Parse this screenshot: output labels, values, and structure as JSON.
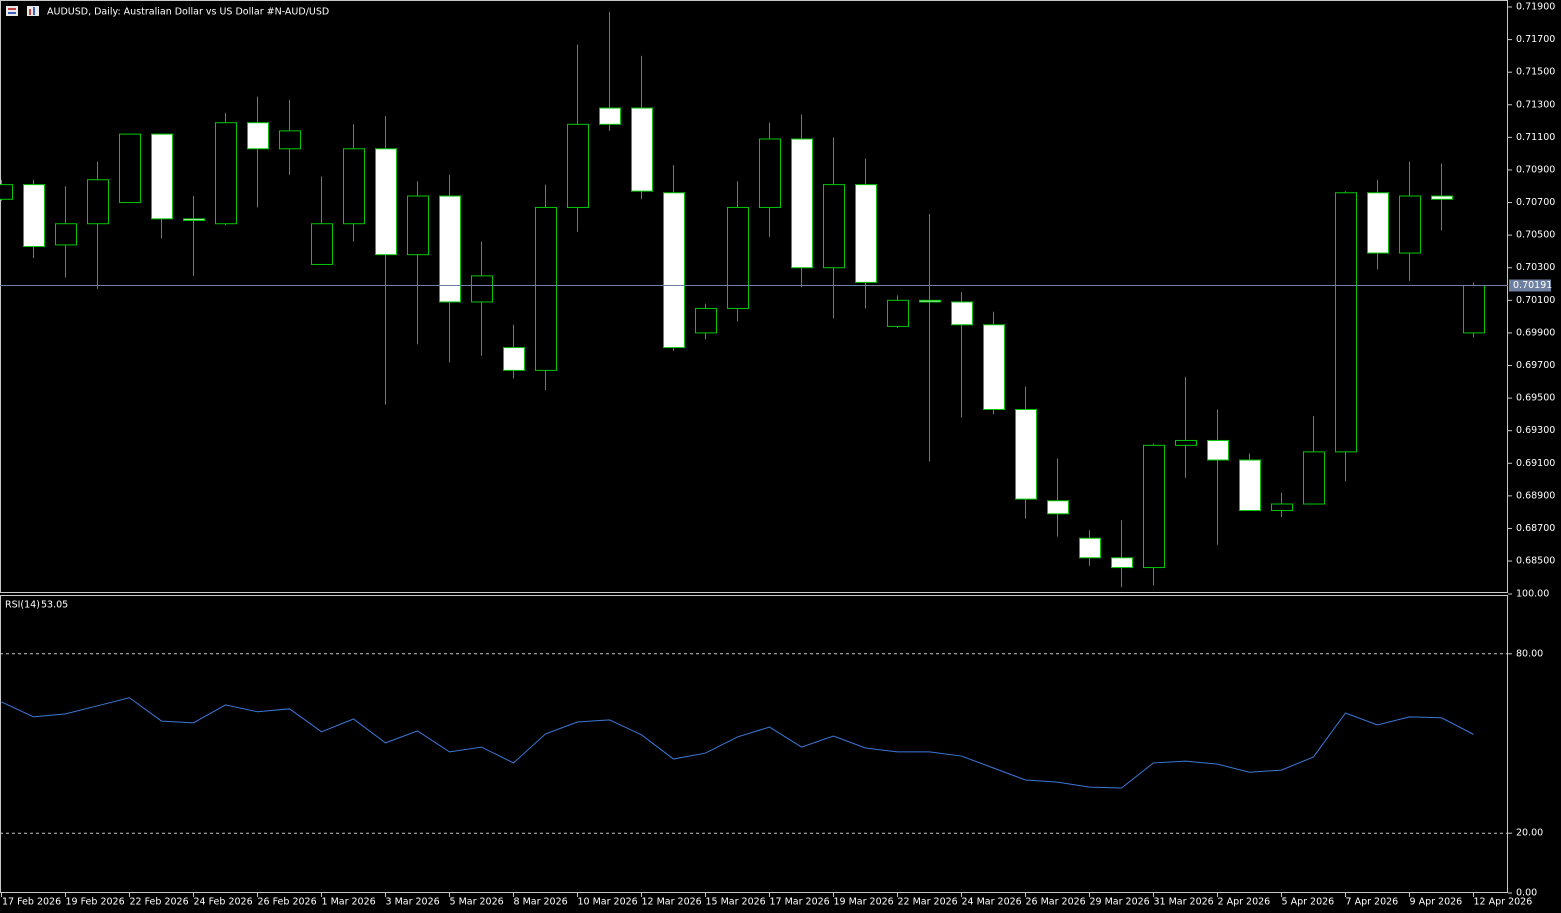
{
  "chart_data": [
    {
      "type": "candlestick",
      "title": "AUDUSD, Daily:  Australian Dollar vs US Dollar #N-AUD/USD",
      "categories": [
        "17 Feb 2026",
        null,
        "19 Feb 2026",
        null,
        "22 Feb 2026",
        null,
        "24 Feb 2026",
        null,
        "26 Feb 2026",
        null,
        "1 Mar 2026",
        null,
        "3 Mar 2026",
        null,
        "5 Mar 2026",
        null,
        "8 Mar 2026",
        null,
        "10 Mar 2026",
        null,
        "12 Mar 2026",
        null,
        "15 Mar 2026",
        null,
        "17 Mar 2026",
        null,
        "19 Mar 2026",
        null,
        "22 Mar 2026",
        null,
        "24 Mar 2026",
        null,
        "26 Mar 2026",
        null,
        "29 Mar 2026",
        null,
        "31 Mar 2026",
        null,
        "2 Apr 2026",
        null,
        "5 Apr 2026",
        null,
        "7 Apr 2026",
        null,
        "9 Apr 2026",
        null,
        "12 Apr 2026"
      ],
      "open": [
        0.7072,
        0.7081,
        0.7044,
        0.7057,
        0.707,
        0.7112,
        0.706,
        0.7057,
        0.7119,
        0.7103,
        0.7032,
        0.7057,
        0.7103,
        0.7038,
        0.7074,
        0.7009,
        0.6981,
        0.6967,
        0.7067,
        0.7128,
        0.7128,
        0.7076,
        0.699,
        0.7005,
        0.7067,
        0.7109,
        0.703,
        0.7081,
        0.6994,
        0.701,
        0.7009,
        0.6995,
        0.6943,
        0.6887,
        0.6864,
        0.6852,
        0.6846,
        0.6921,
        0.6924,
        0.6912,
        0.6881,
        0.6885,
        0.6917,
        0.7076,
        0.7039,
        0.7074,
        0.699
      ],
      "high": [
        0.7084,
        0.7084,
        0.708,
        0.7095,
        0.7112,
        0.7112,
        0.7074,
        0.7125,
        0.7135,
        0.7133,
        0.7086,
        0.7118,
        0.7123,
        0.7083,
        0.7087,
        0.7046,
        0.6995,
        0.7081,
        0.7167,
        0.7187,
        0.716,
        0.7093,
        0.7008,
        0.7083,
        0.7119,
        0.7124,
        0.711,
        0.7097,
        0.7013,
        0.7063,
        0.7015,
        0.7003,
        0.6957,
        0.6913,
        0.6869,
        0.6875,
        0.6922,
        0.6963,
        0.6943,
        0.6916,
        0.6892,
        0.6939,
        0.7077,
        0.7084,
        0.7095,
        0.7094,
        0.7021
      ],
      "low": [
        0.7071,
        0.7036,
        0.7024,
        0.7017,
        0.707,
        0.7048,
        0.7025,
        0.7056,
        0.7067,
        0.7087,
        0.7032,
        0.7046,
        0.6946,
        0.6983,
        0.6972,
        0.6976,
        0.6962,
        0.6955,
        0.7052,
        0.7114,
        0.7072,
        0.6979,
        0.6986,
        0.6997,
        0.7049,
        0.7018,
        0.6999,
        0.7005,
        0.6993,
        0.6911,
        0.6938,
        0.694,
        0.6876,
        0.6865,
        0.6847,
        0.6834,
        0.6835,
        0.6901,
        0.686,
        0.6881,
        0.6877,
        0.6885,
        0.6899,
        0.7029,
        0.7022,
        0.7053,
        0.6987
      ],
      "close": [
        0.7081,
        0.7043,
        0.7057,
        0.7084,
        0.7112,
        0.706,
        0.7059,
        0.7119,
        0.7103,
        0.7114,
        0.7057,
        0.7103,
        0.7038,
        0.7074,
        0.7009,
        0.7025,
        0.6967,
        0.7067,
        0.7118,
        0.7118,
        0.7077,
        0.6981,
        0.7005,
        0.7067,
        0.7109,
        0.703,
        0.7081,
        0.7021,
        0.701,
        0.7009,
        0.6995,
        0.6943,
        0.6888,
        0.6879,
        0.6852,
        0.6846,
        0.6921,
        0.6924,
        0.6912,
        0.6881,
        0.6885,
        0.6917,
        0.7076,
        0.7039,
        0.7074,
        0.7072,
        0.70191
      ],
      "up_color": "#00c800",
      "down_fill": "#ffffff",
      "up_fill": "#000000",
      "last_price": 0.70191,
      "last_price_color": "#6f7f9f",
      "ylim": [
        0.6831,
        0.71943
      ],
      "yticks": [
        {
          "value": 0.719,
          "label": "0.71900"
        },
        {
          "value": 0.717,
          "label": "0.71700"
        },
        {
          "value": 0.715,
          "label": "0.71500"
        },
        {
          "value": 0.713,
          "label": "0.71300"
        },
        {
          "value": 0.711,
          "label": "0.71100"
        },
        {
          "value": 0.709,
          "label": "0.70900"
        },
        {
          "value": 0.707,
          "label": "0.70700"
        },
        {
          "value": 0.705,
          "label": "0.70500"
        },
        {
          "value": 0.703,
          "label": "0.70300"
        },
        {
          "value": 0.701,
          "label": "0.70100"
        },
        {
          "value": 0.699,
          "label": "0.69900"
        },
        {
          "value": 0.697,
          "label": "0.69700"
        },
        {
          "value": 0.695,
          "label": "0.69500"
        },
        {
          "value": 0.693,
          "label": "0.69300"
        },
        {
          "value": 0.691,
          "label": "0.69100"
        },
        {
          "value": 0.689,
          "label": "0.68900"
        },
        {
          "value": 0.687,
          "label": "0.68700"
        },
        {
          "value": 0.685,
          "label": "0.68500"
        }
      ]
    },
    {
      "type": "line",
      "title": "RSI(14)",
      "series": [
        {
          "name": "RSI(14)",
          "color": "#3c78d8",
          "values": [
            63.9,
            58.9,
            59.9,
            62.6,
            65.3,
            57.5,
            56.9,
            62.9,
            60.6,
            61.6,
            53.9,
            58.2,
            50.2,
            54.2,
            47.2,
            48.8,
            43.5,
            53.2,
            57.2,
            57.9,
            52.9,
            44.8,
            46.8,
            52.2,
            55.5,
            48.8,
            52.5,
            48.5,
            47.2,
            47.2,
            45.8,
            41.8,
            37.8,
            37.1,
            35.4,
            35.1,
            43.5,
            44.1,
            43.1,
            40.4,
            41.1,
            45.5,
            60.2,
            56.2,
            58.9,
            58.6,
            53.05
          ]
        }
      ],
      "levels": [
        80,
        20
      ],
      "ylim": [
        0,
        100
      ],
      "yticks": [
        {
          "value": 100,
          "label": "100.00"
        },
        {
          "value": 80,
          "label": "80.00"
        },
        {
          "value": 20,
          "label": "20.00"
        },
        {
          "value": 0,
          "label": "0.00"
        }
      ]
    }
  ]
}
